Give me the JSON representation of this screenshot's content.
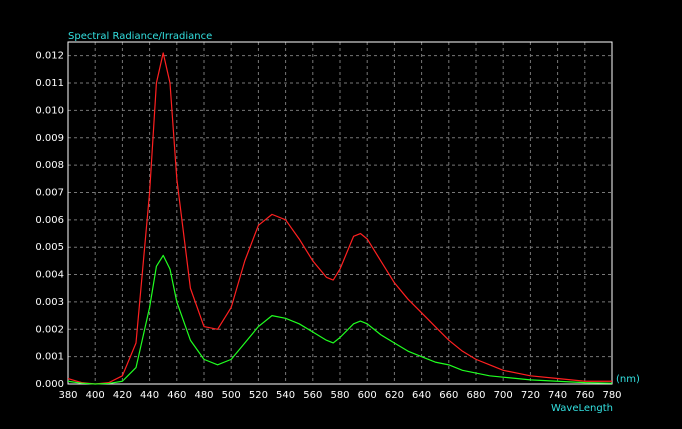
{
  "chart_data": {
    "type": "line",
    "title": "Spectral Radiance/Irradiance",
    "x_unit": "(nm)",
    "x_label": "WaveLength",
    "x": [
      380,
      390,
      400,
      410,
      420,
      430,
      440,
      445,
      450,
      455,
      460,
      470,
      480,
      490,
      500,
      510,
      520,
      530,
      540,
      550,
      560,
      570,
      575,
      580,
      590,
      595,
      600,
      610,
      620,
      630,
      640,
      650,
      660,
      670,
      680,
      690,
      700,
      720,
      740,
      760,
      780
    ],
    "series": [
      {
        "color": "#ff2020",
        "values": [
          0.0002,
          5e-05,
          0,
          5e-05,
          0.0003,
          0.0015,
          0.007,
          0.011,
          0.0121,
          0.011,
          0.0075,
          0.0035,
          0.0021,
          0.002,
          0.0028,
          0.0045,
          0.0058,
          0.0062,
          0.006,
          0.0053,
          0.0045,
          0.0039,
          0.0038,
          0.0042,
          0.0054,
          0.0055,
          0.0053,
          0.0045,
          0.0037,
          0.0031,
          0.0026,
          0.0021,
          0.0016,
          0.0012,
          0.0009,
          0.0007,
          0.0005,
          0.0003,
          0.0002,
          0.0001,
          0.0001
        ]
      },
      {
        "color": "#20ff20",
        "values": [
          0.0001,
          3e-05,
          0,
          2e-05,
          0.0001,
          0.0006,
          0.0028,
          0.0043,
          0.0047,
          0.0042,
          0.003,
          0.0016,
          0.0009,
          0.0007,
          0.0009,
          0.0015,
          0.0021,
          0.0025,
          0.0024,
          0.0022,
          0.0019,
          0.0016,
          0.0015,
          0.0017,
          0.0022,
          0.0023,
          0.0022,
          0.0018,
          0.0015,
          0.0012,
          0.001,
          0.0008,
          0.0007,
          0.0005,
          0.0004,
          0.0003,
          0.00025,
          0.00015,
          0.0001,
          5e-05,
          3e-05
        ]
      }
    ],
    "xlim": [
      380,
      780
    ],
    "xticks": [
      380,
      400,
      420,
      440,
      460,
      480,
      500,
      520,
      540,
      560,
      580,
      600,
      620,
      640,
      660,
      680,
      700,
      720,
      740,
      760,
      780
    ],
    "ylim": [
      0,
      0.0125
    ],
    "yticks": [
      {
        "value": 0,
        "label": "0.000"
      },
      {
        "value": 0.001,
        "label": "0.001"
      },
      {
        "value": 0.002,
        "label": "0.002"
      },
      {
        "value": 0.003,
        "label": "0.003"
      },
      {
        "value": 0.004,
        "label": "0.004"
      },
      {
        "value": 0.005,
        "label": "0.005"
      },
      {
        "value": 0.006,
        "label": "0.006"
      },
      {
        "value": 0.007,
        "label": "0.007"
      },
      {
        "value": 0.008,
        "label": "0.008"
      },
      {
        "value": 0.009,
        "label": "0.009"
      },
      {
        "value": 0.01,
        "label": "0.010"
      },
      {
        "value": 0.011,
        "label": "0.011"
      },
      {
        "value": 0.012,
        "label": "0.012"
      }
    ],
    "grid": true
  }
}
